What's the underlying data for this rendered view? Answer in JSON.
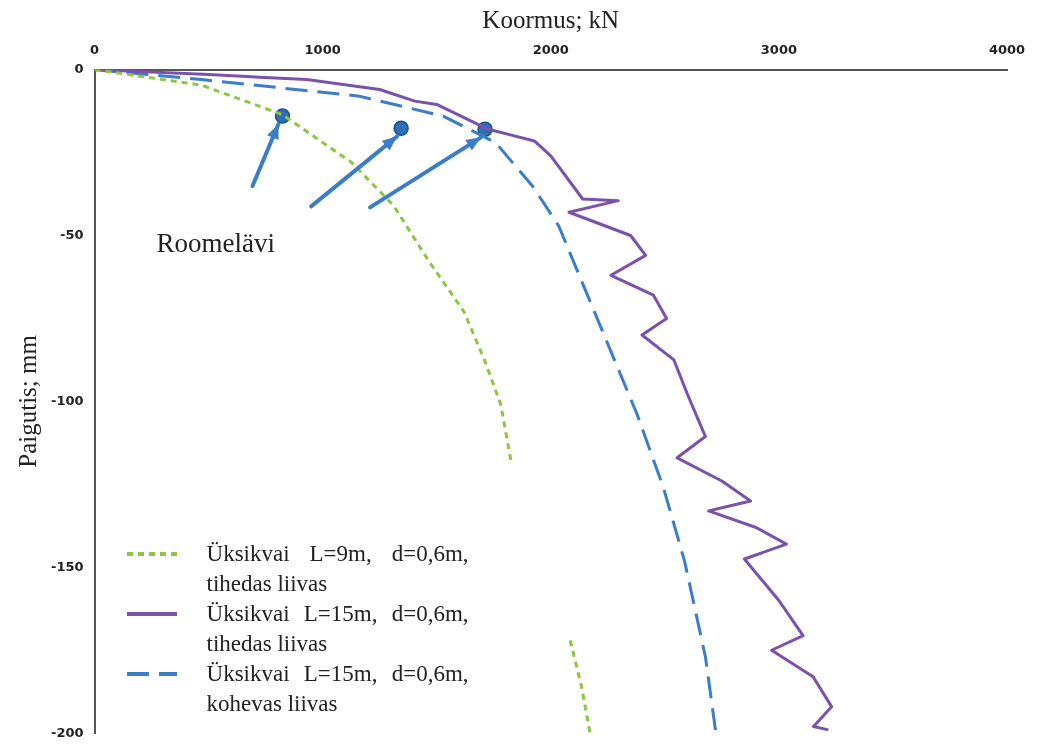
{
  "chart_data": {
    "type": "line",
    "xlabel": "Koormus; kN",
    "ylabel": "Paigutis; mm",
    "xlim": [
      0,
      4000
    ],
    "xticks": [
      0,
      1000,
      2000,
      3000,
      4000
    ],
    "ylim": [
      -200,
      0
    ],
    "yticks": [
      0,
      -50,
      -100,
      -150,
      -200
    ],
    "grid": false,
    "legend": "bottom left",
    "annotations": [
      "Roomelävi"
    ],
    "series": [
      {
        "name": "Üksikvai L=9m, d=0,6m, tihedas liivas",
        "color": "#8dc63f",
        "line_style": "dotted",
        "x": [
          0,
          470,
          824,
          1127,
          1311,
          1468,
          1620,
          1712,
          1781,
          1827,
          1900,
          2085,
          2135,
          2172
        ],
        "values": [
          0,
          -4.7,
          -13.6,
          -28,
          -41,
          -58,
          -73,
          -88,
          -101,
          -118.5,
          null,
          -172,
          -186,
          -200
        ]
      },
      {
        "name": "Üksikvai L=15m, d=0,6m, tihedas liivas",
        "color": "#7b52ab",
        "line_style": "solid",
        "x": [
          0,
          500,
          930,
          1250,
          1404,
          1500,
          1726,
          1928,
          2000,
          2140,
          2296,
          2080,
          2350,
          2416,
          2264,
          2450,
          2508,
          2400,
          2540,
          2600,
          2678,
          2554,
          2750,
          2876,
          2692,
          2900,
          3033,
          2849,
          3000,
          3106,
          2968,
          3150,
          3231,
          3152,
          3217
        ],
        "values": [
          0,
          -1.5,
          -3,
          -6,
          -9.5,
          -10.5,
          -18,
          -21.5,
          -26,
          -39,
          -39.5,
          -43,
          -50,
          -56,
          -62,
          -68,
          -75,
          -80,
          -87.5,
          -98,
          -110.6,
          -117,
          -124,
          -130,
          -133,
          -138,
          -143,
          -147.5,
          -160,
          -170.6,
          -175,
          -183,
          -192,
          -198,
          -199
        ]
      },
      {
        "name": "Üksikvai L=15m, d=0,6m, kohevas liivas",
        "color": "#3a7dc9",
        "line_style": "dashed",
        "x": [
          0,
          470,
          1160,
          1528,
          1758,
          1919,
          2034,
          2149,
          2264,
          2379,
          2494,
          2586,
          2678,
          2724
        ],
        "values": [
          0,
          -3,
          -8,
          -14,
          -22,
          -35,
          -47,
          -66,
          -85,
          -104,
          -126,
          -148,
          -177,
          -200
        ]
      },
      {
        "type": "scatter",
        "color": "#2e6fb8",
        "marker": "circle",
        "x": [
          824,
          1344,
          1712
        ],
        "values": [
          -14,
          -17.7,
          -18
        ]
      }
    ]
  }
}
